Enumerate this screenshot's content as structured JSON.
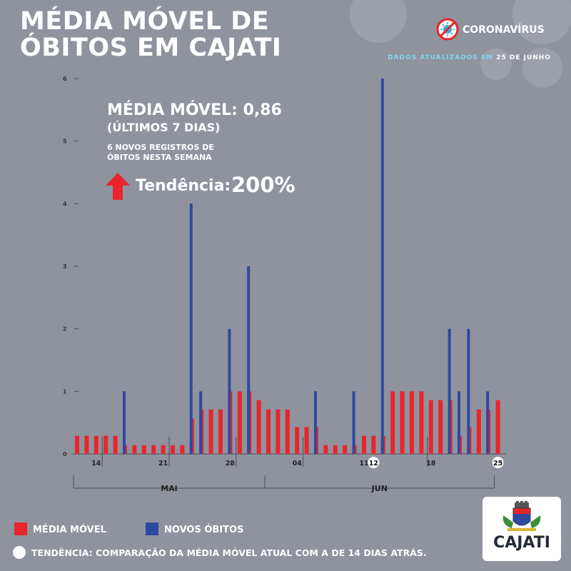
{
  "title": [
    "MÉDIA MÓVEL DE",
    "ÓBITOS EM CAJATI"
  ],
  "brand": "CORONAVÍRUS",
  "updated": {
    "prefix": "DADOS ATUALIZADOS EM",
    "date": "25 DE JUNHO"
  },
  "summary": {
    "moving_average_line": "MÉDIA MÓVEL: 0,86",
    "period_line": "(ÚLTIMOS 7 DIAS)",
    "new_records_line": "6 NOVOS REGISTROS DE ÓBITOS NESTA SEMANA",
    "trend_label": "Tendência:",
    "trend_value": "200%"
  },
  "legend": {
    "moving_average": "MÉDIA MÓVEL",
    "new_deaths": "NOVOS ÓBITOS"
  },
  "footnote": "TENDÊNCIA: COMPARAÇÃO DA MÉDIA MÓVEL ATUAL COM A DE 14 DIAS ATRÁS.",
  "logo_text": "CAJATI",
  "colors": {
    "background": "#8f939e",
    "moving_average": "#e8252c",
    "new_deaths": "#2f48a0",
    "axis": "#4b4f5a",
    "trend_arrow": "#e8252c"
  },
  "chart_data": {
    "type": "bar",
    "xlabel": "",
    "ylabel": "",
    "ylim": [
      0,
      6
    ],
    "y_ticks": [
      "0",
      "1",
      "2",
      "3",
      "4",
      "5",
      "6"
    ],
    "x_tick_labels": [
      "14",
      "21",
      "28",
      "04",
      "11",
      "12",
      "18",
      "25"
    ],
    "x_tick_positions": [
      2,
      9,
      16,
      23,
      30,
      31,
      37,
      44
    ],
    "highlighted_ticks": [
      "12",
      "25"
    ],
    "month_labels": [
      {
        "label": "MAI",
        "start": 0,
        "end": 20
      },
      {
        "label": "JUN",
        "start": 20,
        "end": 44
      }
    ],
    "grid": false,
    "legend_position": "bottom-left",
    "days": 45,
    "series": [
      {
        "name": "MÉDIA MÓVEL",
        "values": [
          0.29,
          0.29,
          0.29,
          0.29,
          0.29,
          0.14,
          0.14,
          0.14,
          0.14,
          0.14,
          0.14,
          0.14,
          0.57,
          0.71,
          0.71,
          0.71,
          1,
          1,
          1,
          0.86,
          0.71,
          0.71,
          0.71,
          0.43,
          0.43,
          0.43,
          0.14,
          0.14,
          0.14,
          0.14,
          0.29,
          0.29,
          0.29,
          1,
          1,
          1,
          1,
          0.86,
          0.86,
          0.86,
          0.29,
          0.43,
          0.71,
          0.71,
          0.86
        ]
      },
      {
        "name": "NOVOS ÓBITOS",
        "values": [
          0,
          0,
          0,
          0,
          0,
          1,
          0,
          0,
          0,
          0,
          0,
          0,
          4,
          1,
          0,
          0,
          2,
          0,
          3,
          0,
          0,
          0,
          0,
          0,
          0,
          1,
          0,
          0,
          0,
          1,
          0,
          0,
          6,
          0,
          0,
          0,
          0,
          0,
          0,
          2,
          1,
          2,
          0,
          1,
          0
        ]
      }
    ]
  }
}
